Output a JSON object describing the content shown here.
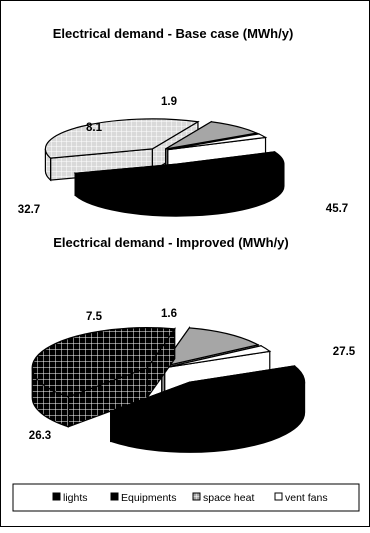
{
  "chart_data": [
    {
      "type": "pie",
      "title": "Electrical demand - Base case (MWh/y)",
      "categories": [
        "lights",
        "Equipments",
        "space heat",
        "vent fans"
      ],
      "values": [
        45.7,
        32.7,
        8.1,
        1.9
      ],
      "value_labels": [
        "45.7",
        "32.7",
        "8.1",
        "1.9"
      ]
    },
    {
      "type": "pie",
      "title": "Electrical demand - Improved (MWh/y)",
      "categories": [
        "lights",
        "Equipments",
        "space heat",
        "vent fans"
      ],
      "values": [
        27.5,
        26.3,
        7.5,
        1.6
      ],
      "value_labels": [
        "27.5",
        "26.3",
        "7.5",
        "1.6"
      ]
    }
  ],
  "legend": {
    "placement": "bottom",
    "items": [
      {
        "label": "lights",
        "swatch": "solid-black"
      },
      {
        "label": "Equipments",
        "swatch": "solid-black"
      },
      {
        "label": "space heat",
        "swatch": "grey-grid"
      },
      {
        "label": "vent fans",
        "swatch": "white"
      }
    ]
  },
  "colors": {
    "lights": "#000000",
    "equipments_base": "#dddddd",
    "equipments_improved": "#000000",
    "space_heat": "#a6a6a6",
    "vent_fans": "#ffffff",
    "hatch_line": "#ffffff",
    "outline": "#000000"
  }
}
